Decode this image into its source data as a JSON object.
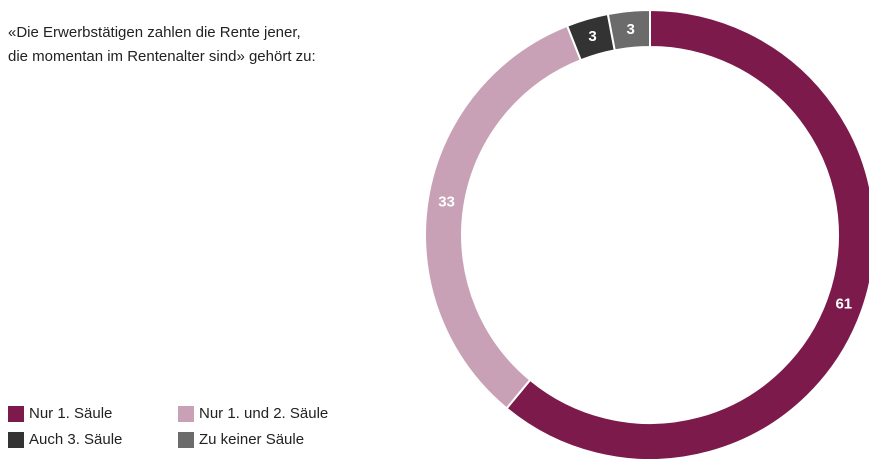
{
  "chart_data": {
    "type": "donut",
    "title": [
      "«Die Erwerbstätigen zahlen die Rente jener,",
      "die momentan im Rentenalter sind» gehört zu:"
    ],
    "categories": [
      "Nur 1. Säule",
      "Nur 1. und 2. Säule",
      "Auch 3. Säule",
      "Zu keiner Säule"
    ],
    "values": [
      61,
      33,
      3,
      3
    ],
    "colors": [
      "#7b1a4b",
      "#c9a1b7",
      "#333333",
      "#6b6b6b"
    ]
  }
}
